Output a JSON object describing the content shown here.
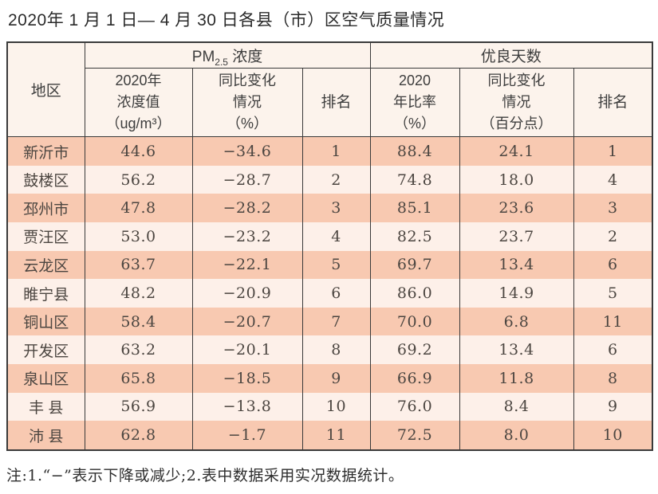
{
  "title": "2020年 1 月 1 日— 4 月 30 日各县（市）区空气质量情况",
  "table": {
    "header": {
      "region": "地区",
      "pm25": {
        "prefix": "PM",
        "sub": "2.5",
        "suffix": " 浓度"
      },
      "good_days": "优良天数",
      "sub": {
        "pm_value": "2020年\n浓度值\n（ug/m³）",
        "pm_change": "同比变化\n情况\n（%）",
        "pm_rank": "排名",
        "gd_rate": "2020\n年比率\n（%）",
        "gd_change": "同比变化\n情况\n（百分点）",
        "gd_rank": "排名"
      }
    },
    "rows": [
      {
        "region": "新沂市",
        "pm_value": "44.6",
        "pm_change": "−34.6",
        "pm_rank": "1",
        "gd_rate": "88.4",
        "gd_change": "24.1",
        "gd_rank": "1"
      },
      {
        "region": "鼓楼区",
        "pm_value": "56.2",
        "pm_change": "−28.7",
        "pm_rank": "2",
        "gd_rate": "74.8",
        "gd_change": "18.0",
        "gd_rank": "4"
      },
      {
        "region": "邳州市",
        "pm_value": "47.8",
        "pm_change": "−28.2",
        "pm_rank": "3",
        "gd_rate": "85.1",
        "gd_change": "23.6",
        "gd_rank": "3"
      },
      {
        "region": "贾汪区",
        "pm_value": "53.0",
        "pm_change": "−23.2",
        "pm_rank": "4",
        "gd_rate": "82.5",
        "gd_change": "23.7",
        "gd_rank": "2"
      },
      {
        "region": "云龙区",
        "pm_value": "63.7",
        "pm_change": "−22.1",
        "pm_rank": "5",
        "gd_rate": "69.7",
        "gd_change": "13.4",
        "gd_rank": "6"
      },
      {
        "region": "睢宁县",
        "pm_value": "48.2",
        "pm_change": "−20.9",
        "pm_rank": "6",
        "gd_rate": "86.0",
        "gd_change": "14.9",
        "gd_rank": "5"
      },
      {
        "region": "铜山区",
        "pm_value": "58.4",
        "pm_change": "−20.7",
        "pm_rank": "7",
        "gd_rate": "70.0",
        "gd_change": "6.8",
        "gd_rank": "11"
      },
      {
        "region": "开发区",
        "pm_value": "63.2",
        "pm_change": "−20.1",
        "pm_rank": "8",
        "gd_rate": "69.2",
        "gd_change": "13.4",
        "gd_rank": "6"
      },
      {
        "region": "泉山区",
        "pm_value": "65.8",
        "pm_change": "−18.5",
        "pm_rank": "9",
        "gd_rate": "66.9",
        "gd_change": "11.8",
        "gd_rank": "8"
      },
      {
        "region": "丰 县",
        "pm_value": "56.9",
        "pm_change": "−13.8",
        "pm_rank": "10",
        "gd_rate": "76.0",
        "gd_change": "8.4",
        "gd_rank": "9"
      },
      {
        "region": "沛 县",
        "pm_value": "62.8",
        "pm_change": "−1.7",
        "pm_rank": "11",
        "gd_rate": "72.5",
        "gd_change": "8.0",
        "gd_rank": "10"
      }
    ]
  },
  "footnote": "注:1.“−”表示下降或减少;2.表中数据采用实况数据统计。",
  "colors": {
    "row_stripe_dark": "#f8c9b1",
    "row_stripe_light": "#fdf0e9",
    "header_bg": "#fcf3ec",
    "border": "#3a3a3a",
    "text": "#4c4641"
  }
}
